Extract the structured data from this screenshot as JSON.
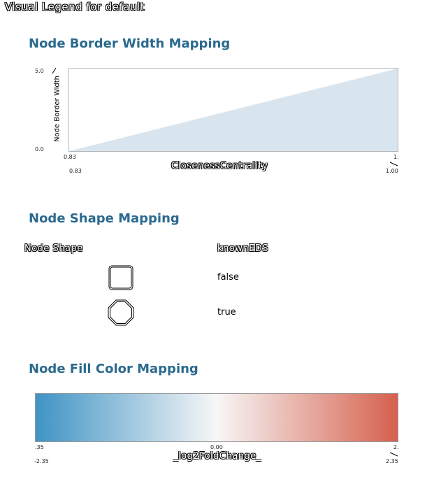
{
  "window_title": "Visual Legend for default",
  "border_width": {
    "title": "Node Border Width Mapping",
    "y_label": "Node Border Width",
    "y_max_label": "5.0",
    "y_min_label": "0.0",
    "x_label": "ClosenessCentrality",
    "x_min_top": "0.83",
    "x_max_top": "1.",
    "x_min_bottom": "0.83",
    "x_max_bottom": "1.00",
    "fill_color": "#d9e5ee",
    "chart_data": {
      "type": "area",
      "x": [
        0.83,
        1.0
      ],
      "y": [
        0.0,
        5.0
      ],
      "xlabel": "ClosenessCentrality",
      "ylabel": "Node Border Width",
      "xlim": [
        0.83,
        1.0
      ],
      "ylim": [
        0.0,
        5.0
      ]
    }
  },
  "shape": {
    "title": "Node Shape Mapping",
    "col_left": "Node Shape",
    "col_right": "knownEDS",
    "rows": [
      {
        "shape": "round-rectangle-icon",
        "value": "false"
      },
      {
        "shape": "octagon-icon",
        "value": "true"
      }
    ]
  },
  "fill_color": {
    "title": "Node Fill Color Mapping",
    "x_label": "_log2FoldChange_",
    "left_top": ".35",
    "mid_top": "0.00",
    "right_top": "2.",
    "left_bottom": "-2.35",
    "right_bottom": "2.35",
    "color_low": "#3f93c5",
    "color_mid": "#f7f7f7",
    "color_high": "#d6604d"
  }
}
